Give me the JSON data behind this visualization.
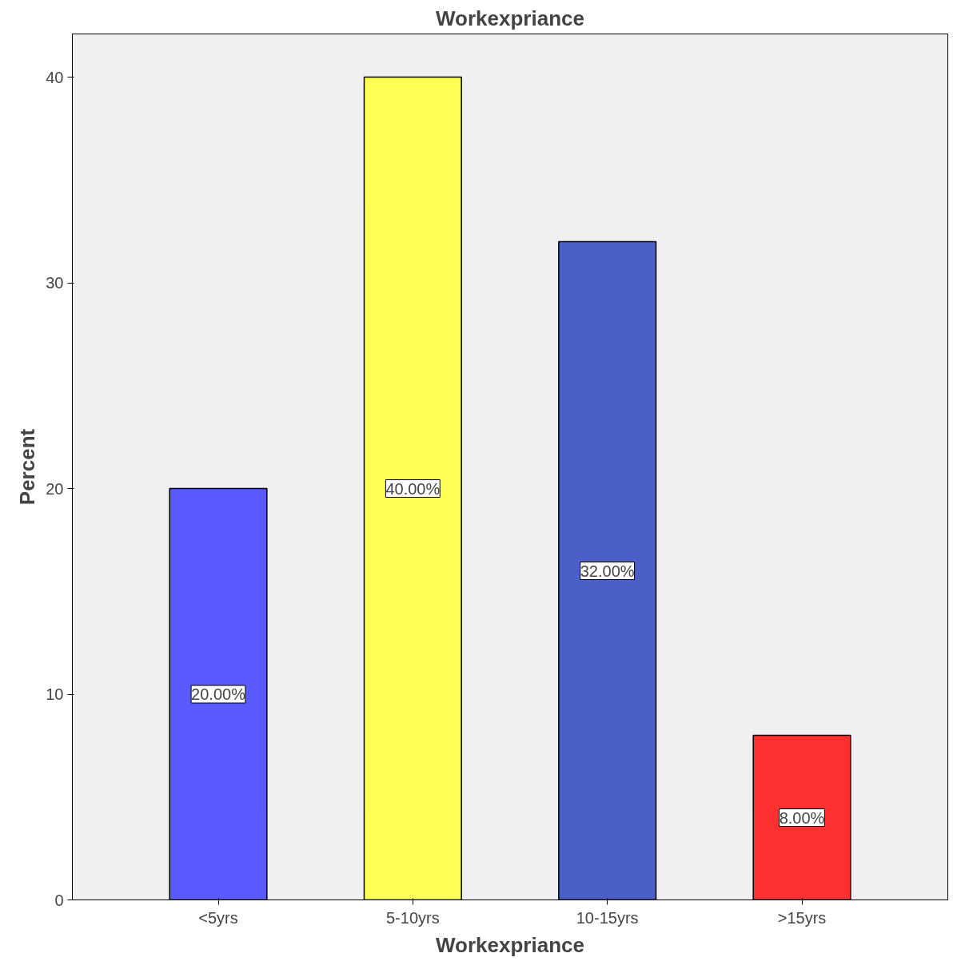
{
  "chart_data": {
    "type": "bar",
    "title": "Workexpriance",
    "xlabel": "Workexpriance",
    "ylabel": "Percent",
    "categories": [
      "<5yrs",
      "5-10yrs",
      "10-15yrs",
      ">15yrs"
    ],
    "values": [
      20,
      40,
      32,
      8
    ],
    "colors": [
      "#5a5aff",
      "#ffff55",
      "#4a5fc8",
      "#ff3030"
    ],
    "value_labels": [
      "20.00%",
      "40.00%",
      "32.00%",
      "8.00%"
    ],
    "ylim": [
      0,
      42.1
    ],
    "yticks": [
      0,
      10,
      20,
      30,
      40
    ],
    "grid": false
  }
}
